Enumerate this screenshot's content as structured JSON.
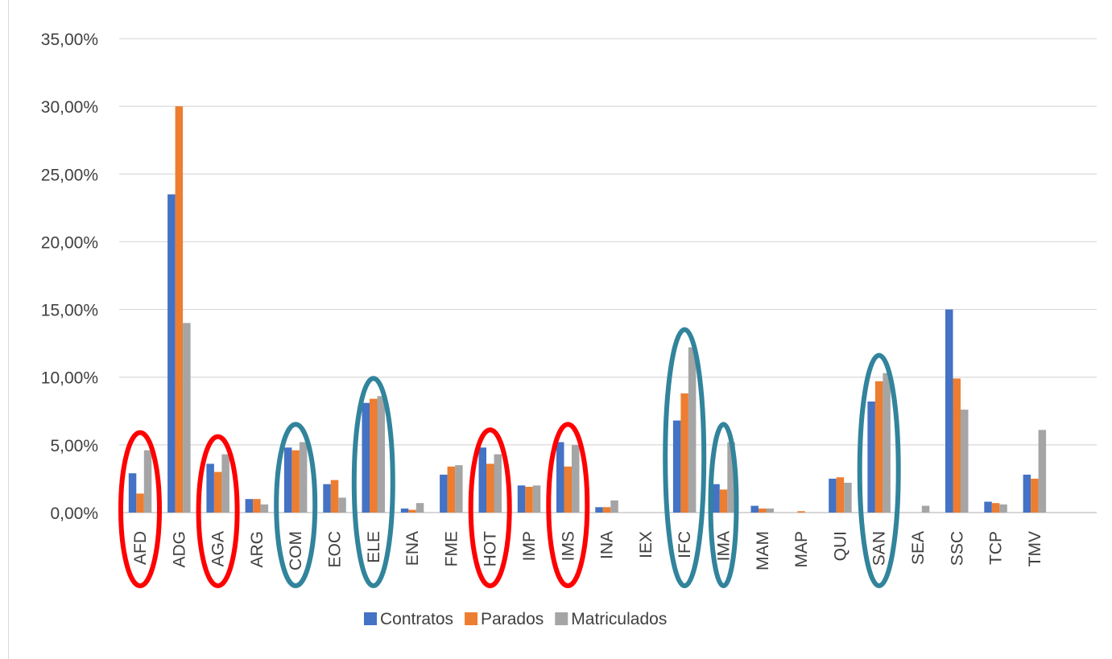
{
  "chart_data": {
    "type": "bar",
    "title": "",
    "xlabel": "",
    "ylabel": "",
    "ylim": [
      0,
      35
    ],
    "grid": true,
    "legend_position": "bottom",
    "y_tick_labels": [
      "0,00%",
      "5,00%",
      "10,00%",
      "15,00%",
      "20,00%",
      "25,00%",
      "30,00%",
      "35,00%"
    ],
    "categories": [
      "AFD",
      "ADG",
      "AGA",
      "ARG",
      "COM",
      "EOC",
      "ELE",
      "ENA",
      "FME",
      "HOT",
      "IMP",
      "IMS",
      "INA",
      "IEX",
      "IFC",
      "IMA",
      "MAM",
      "MAP",
      "QUI",
      "SAN",
      "SEA",
      "SSC",
      "TCP",
      "TMV"
    ],
    "series": [
      {
        "name": "Contratos",
        "color": "#4472C4",
        "values": [
          2.9,
          23.5,
          3.6,
          1.0,
          4.8,
          2.1,
          8.1,
          0.3,
          2.8,
          4.8,
          2.0,
          5.2,
          0.4,
          0.0,
          6.8,
          2.1,
          0.5,
          0.0,
          2.5,
          8.2,
          0.0,
          15.0,
          0.8,
          2.8
        ]
      },
      {
        "name": "Parados",
        "color": "#ED7D31",
        "values": [
          1.4,
          30.0,
          3.0,
          1.0,
          4.6,
          2.4,
          8.4,
          0.2,
          3.4,
          3.6,
          1.9,
          3.4,
          0.4,
          0.0,
          8.8,
          1.7,
          0.3,
          0.1,
          2.6,
          9.7,
          0.0,
          9.9,
          0.7,
          2.5
        ]
      },
      {
        "name": "Matriculados",
        "color": "#A5A5A5",
        "values": [
          4.6,
          14.0,
          4.3,
          0.6,
          5.2,
          1.1,
          8.6,
          0.7,
          3.5,
          4.3,
          2.0,
          5.0,
          0.9,
          0.0,
          12.2,
          5.2,
          0.3,
          0.0,
          2.2,
          10.3,
          0.5,
          7.6,
          0.6,
          6.1
        ]
      }
    ],
    "annotations": {
      "red_circled": [
        "AFD",
        "AGA",
        "HOT",
        "IMS"
      ],
      "teal_circled": [
        "COM",
        "ELE",
        "IFC",
        "IMA",
        "SAN"
      ],
      "red_color": "#FF0000",
      "teal_color": "#31849B"
    }
  }
}
